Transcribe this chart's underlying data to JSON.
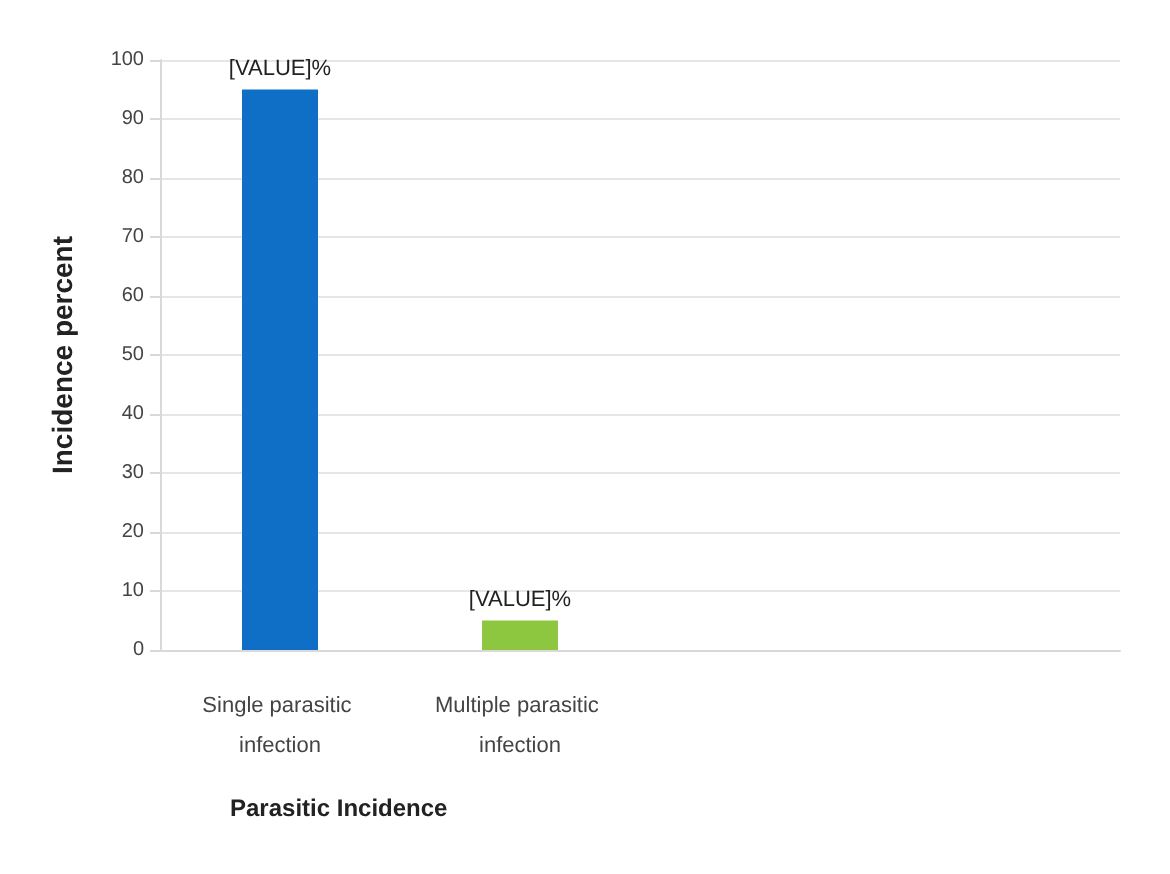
{
  "chart_data": {
    "type": "bar",
    "xlabel": "Parasitic Incidence",
    "ylabel": "Incidence percent",
    "categories": [
      "Single parasitic infection",
      "Multiple parasitic infection",
      null,
      null
    ],
    "values": [
      95,
      5,
      null,
      null
    ],
    "colors": [
      "#0f6fc6",
      "#8dc63f",
      "#0f6fc6",
      "#0f6fc6"
    ],
    "value_labels": [
      "[VALUE]%",
      "[VALUE]%",
      null,
      null
    ],
    "ylim": [
      0,
      100
    ],
    "yticks": [
      0,
      10,
      20,
      30,
      40,
      50,
      60,
      70,
      80,
      90,
      100
    ],
    "grid": "y"
  }
}
